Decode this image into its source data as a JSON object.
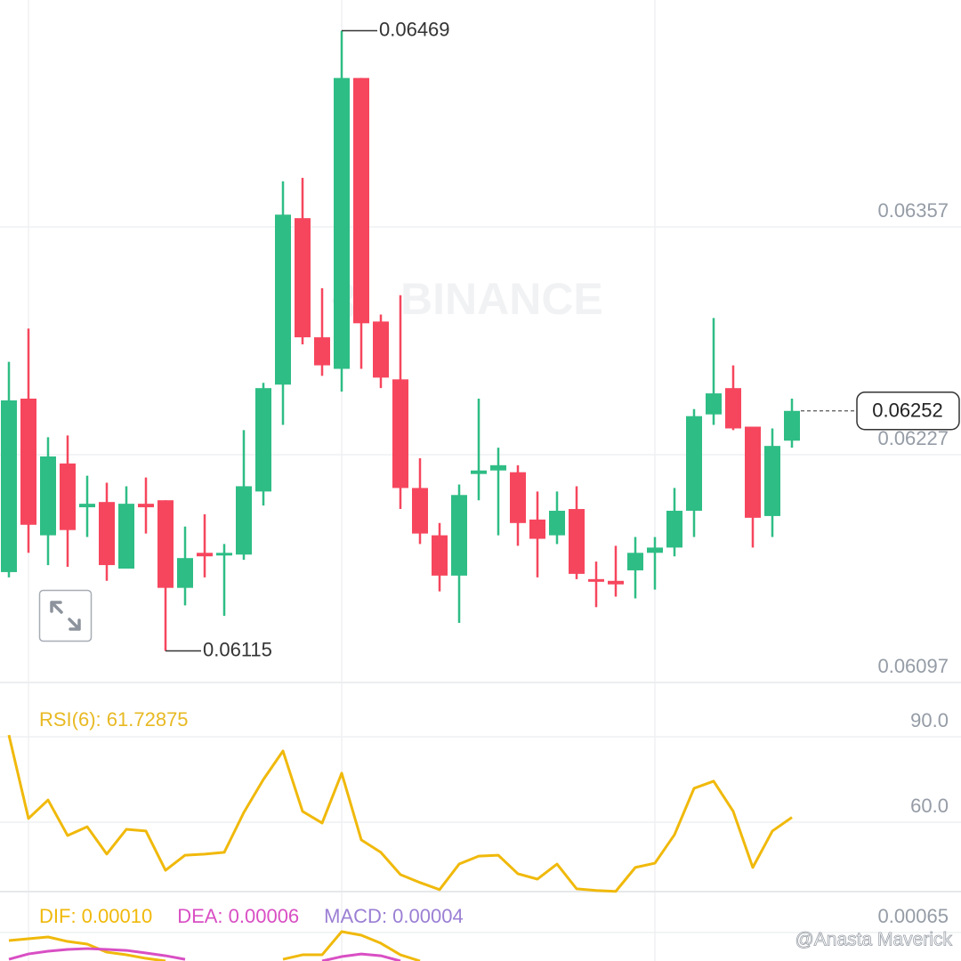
{
  "chart_data": [
    {
      "type": "candlestick",
      "open": [
        0.0616,
        0.06259,
        0.06181,
        0.06222,
        0.06197,
        0.062,
        0.06162,
        0.06199,
        0.06201,
        0.06151,
        0.06171,
        0.0617,
        0.0617,
        0.06206,
        0.06267,
        0.06362,
        0.06294,
        0.06276,
        0.06442,
        0.06303,
        0.0627,
        0.06208,
        0.06181,
        0.06158,
        0.06216,
        0.06218,
        0.06217,
        0.0619,
        0.06181,
        0.06196,
        0.06156,
        0.06155,
        0.06161,
        0.06171,
        0.06174,
        0.06195,
        0.0625,
        0.06265,
        0.06243,
        0.06192,
        0.06235
      ],
      "high": [
        0.0628,
        0.06299,
        0.06237,
        0.06238,
        0.06215,
        0.06211,
        0.06209,
        0.06214,
        0.06201,
        0.06186,
        0.06193,
        0.06176,
        0.06241,
        0.06268,
        0.06383,
        0.06385,
        0.06322,
        0.06469,
        0.06442,
        0.06307,
        0.06318,
        0.06225,
        0.06188,
        0.0621,
        0.06259,
        0.06231,
        0.06221,
        0.06206,
        0.06206,
        0.06209,
        0.06166,
        0.06175,
        0.0618,
        0.0618,
        0.06208,
        0.06253,
        0.06305,
        0.06278,
        0.06243,
        0.06242,
        0.06259
      ],
      "low": [
        0.06157,
        0.06171,
        0.06164,
        0.06163,
        0.0618,
        0.06155,
        0.06162,
        0.06182,
        0.06115,
        0.06141,
        0.06157,
        0.06135,
        0.06167,
        0.06198,
        0.06244,
        0.0629,
        0.06272,
        0.06263,
        0.06276,
        0.06265,
        0.06196,
        0.06176,
        0.06149,
        0.06131,
        0.06201,
        0.06181,
        0.06175,
        0.06157,
        0.06176,
        0.06156,
        0.0614,
        0.06146,
        0.06145,
        0.0615,
        0.06169,
        0.0618,
        0.06244,
        0.06241,
        0.06174,
        0.0618,
        0.06231
      ],
      "close": [
        0.06258,
        0.06187,
        0.06226,
        0.06184,
        0.06199,
        0.06164,
        0.06199,
        0.06197,
        0.06151,
        0.06168,
        0.06169,
        0.06171,
        0.06209,
        0.06265,
        0.06364,
        0.06294,
        0.06278,
        0.06442,
        0.06302,
        0.06271,
        0.06208,
        0.06182,
        0.06158,
        0.06204,
        0.06218,
        0.06221,
        0.06188,
        0.06179,
        0.06195,
        0.06159,
        0.06155,
        0.06153,
        0.06171,
        0.06174,
        0.06195,
        0.06249,
        0.06262,
        0.06242,
        0.06191,
        0.06232,
        0.06252
      ],
      "up_color": "#2ebd85",
      "down_color": "#f6465d",
      "ylim": [
        0.06097,
        0.064865
      ],
      "yticks": [
        0.06357,
        0.06227,
        0.06097
      ],
      "high_label": 0.06469,
      "low_label": 0.06115,
      "last_price": 0.06252
    },
    {
      "type": "line",
      "title": "RSI(6): 61.72875",
      "title_color": "#e8b923",
      "series": [
        {
          "color": "#f0b90b",
          "values": [
            90.6,
            61.3,
            67.8,
            55.3,
            58.4,
            48.8,
            57.5,
            56.9,
            43.1,
            48.4,
            48.8,
            49.4,
            63.4,
            75.0,
            85.0,
            63.8,
            59.7,
            77.2,
            53.8,
            49.4,
            41.6,
            38.8,
            36.3,
            45.3,
            48.1,
            48.4,
            41.9,
            40.0,
            45.3,
            36.6,
            36.0,
            35.7,
            44.1,
            45.6,
            55.6,
            71.9,
            74.4,
            63.8,
            44.1,
            56.9,
            61.7
          ]
        }
      ],
      "ylim": [
        35,
        109.06
      ],
      "yticks": [
        {
          "value": 90,
          "label": "90.0"
        },
        {
          "value": 60,
          "label": "60.0"
        }
      ]
    },
    {
      "type": "line",
      "series": [
        {
          "name": "DIF: 0.00010",
          "color": "#f0b90b",
          "values": [
            0.000556,
            0.000577,
            0.000598,
            0.000545,
            0.000514,
            0.000419,
            0.000388,
            0.000346,
            0.000315,
            null,
            null,
            null,
            null,
            null,
            0.000335,
            0.000388,
            0.000388,
            0.000661,
            0.000619,
            0.000524,
            0.000388,
            0.000315,
            null,
            null,
            null,
            null,
            null,
            null,
            null,
            null,
            null,
            null,
            null,
            null,
            null,
            null,
            null,
            null,
            null,
            null,
            null
          ]
        },
        {
          "name": "DEA: 0.00006",
          "color": "#d94fc4",
          "values": [
            0.000335,
            0.000398,
            0.00043,
            0.000451,
            0.000461,
            0.000451,
            0.00044,
            0.000409,
            0.000377,
            0.000335,
            null,
            null,
            null,
            null,
            null,
            null,
            0.000315,
            0.000367,
            0.000398,
            0.000377,
            0.000315,
            null,
            null,
            null,
            null,
            null,
            null,
            null,
            null,
            null,
            null,
            null,
            null,
            null,
            null,
            null,
            null,
            null,
            null,
            null,
            null
          ]
        },
        {
          "name": "MACD: 0.00004",
          "color": "#9b7fd4"
        }
      ],
      "ylim": [
        0.000315,
        0.001132
      ],
      "yticks": [
        0.00065
      ]
    }
  ],
  "watermark": "BINANCE",
  "credit": "@Anasta Maverick"
}
